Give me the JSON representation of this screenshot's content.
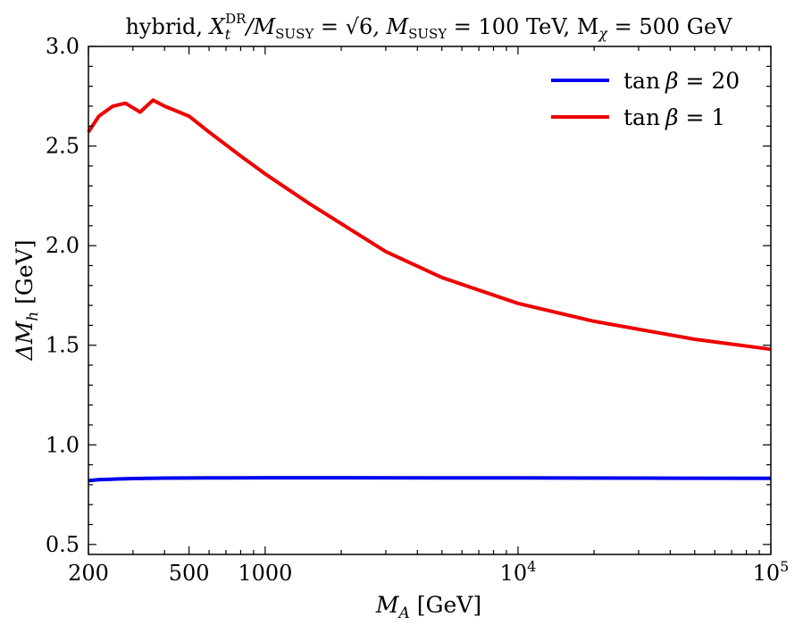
{
  "chart_data": {
    "type": "line",
    "title": "hybrid, X_t^DR/M_SUSY = √6, M_SUSY = 100 TeV, M_χ = 500 GeV",
    "title_parts": {
      "prefix": "hybrid, ",
      "xt": "X",
      "xt_sub": "t",
      "xt_sup": "DR",
      "over": "/M",
      "susy": "SUSY",
      "eq1": " = ",
      "sqrt_arg": "6",
      "mid": ", M",
      "susy2": "SUSY",
      "eq2": " = 100 TeV, M",
      "chi": "χ",
      "eq3": " = 500 GeV"
    },
    "xlabel": "M_A [GeV]",
    "xlabel_parts": {
      "m": "M",
      "sub": "A",
      "unit": " [GeV]"
    },
    "ylabel": "ΔM_h [GeV]",
    "ylabel_parts": {
      "delta": "ΔM",
      "sub": "h",
      "unit": " [GeV]"
    },
    "xscale": "log",
    "xlim": [
      200,
      100000
    ],
    "ylim": [
      0.45,
      3.0
    ],
    "x_ticks": [
      {
        "value": 200,
        "label": "200"
      },
      {
        "value": 500,
        "label": "500"
      },
      {
        "value": 1000,
        "label": "1000"
      },
      {
        "value": 10000,
        "label": "10",
        "exp": "4"
      },
      {
        "value": 100000,
        "label": "10",
        "exp": "5"
      }
    ],
    "y_ticks": [
      {
        "value": 0.5,
        "label": "0.5"
      },
      {
        "value": 1.0,
        "label": "1.0"
      },
      {
        "value": 1.5,
        "label": "1.5"
      },
      {
        "value": 2.0,
        "label": "2.0"
      },
      {
        "value": 2.5,
        "label": "2.5"
      },
      {
        "value": 3.0,
        "label": "3.0"
      }
    ],
    "legend_position": "top-right",
    "series": [
      {
        "name": "tan β = 20",
        "label_parts": {
          "fn": "tan",
          "var": "β",
          "val": " = 20"
        },
        "color": "#0000ee",
        "x": [
          200,
          220,
          250,
          300,
          400,
          600,
          1000,
          2000,
          5000,
          10000,
          30000,
          100000
        ],
        "y": [
          0.82,
          0.825,
          0.828,
          0.831,
          0.833,
          0.834,
          0.835,
          0.835,
          0.834,
          0.834,
          0.833,
          0.832
        ]
      },
      {
        "name": "tan β = 1",
        "label_parts": {
          "fn": "tan",
          "var": "β",
          "val": " = 1"
        },
        "color": "#ee0000",
        "x": [
          200,
          220,
          250,
          280,
          320,
          360,
          400,
          500,
          600,
          800,
          1000,
          1500,
          2000,
          3000,
          5000,
          10000,
          20000,
          50000,
          100000
        ],
        "y": [
          2.57,
          2.65,
          2.7,
          2.715,
          2.67,
          2.73,
          2.7,
          2.65,
          2.57,
          2.45,
          2.36,
          2.21,
          2.11,
          1.97,
          1.84,
          1.71,
          1.62,
          1.53,
          1.48
        ]
      }
    ]
  }
}
